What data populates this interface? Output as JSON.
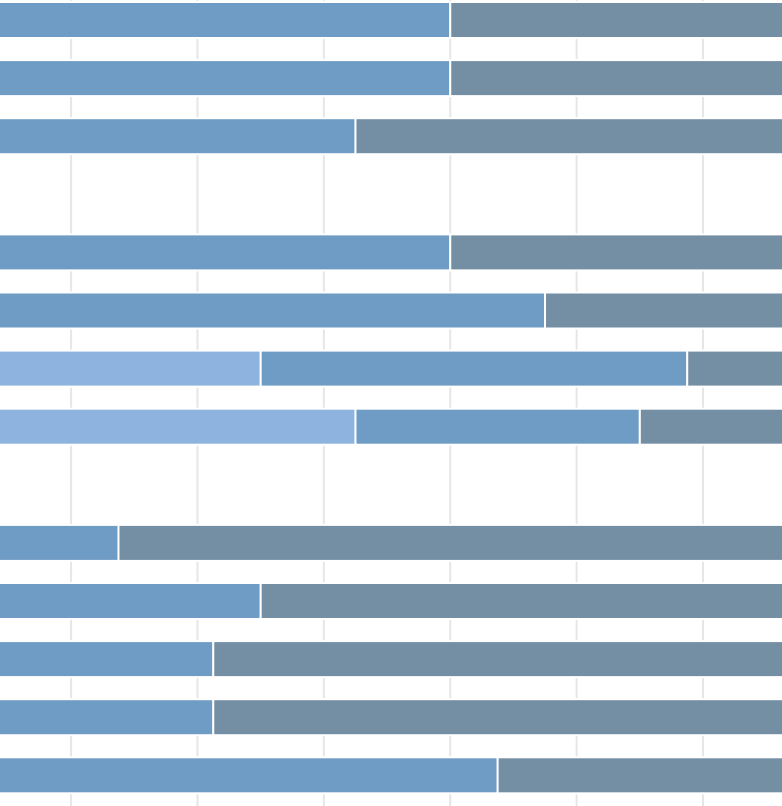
{
  "chart_data": {
    "type": "bar",
    "orientation": "horizontal",
    "stacked": true,
    "grid": true,
    "legend": "none",
    "colors": {
      "light": "#89b1dd",
      "mid": "#6a99c3",
      "dark": "#6f8aa1",
      "gridline": "#e6e6e6",
      "segment_border": "#ffffff"
    },
    "rows": [
      {
        "segments": [
          {
            "color": "mid",
            "value": 48
          },
          {
            "color": "dark",
            "value": 52
          }
        ]
      },
      {
        "segments": [
          {
            "color": "mid",
            "value": 48
          },
          {
            "color": "dark",
            "value": 52
          }
        ]
      },
      {
        "segments": [
          {
            "color": "mid",
            "value": 36
          },
          {
            "color": "dark",
            "value": 64
          }
        ]
      },
      null,
      {
        "segments": [
          {
            "color": "mid",
            "value": 48
          },
          {
            "color": "dark",
            "value": 52
          }
        ]
      },
      {
        "segments": [
          {
            "color": "mid",
            "value": 60
          },
          {
            "color": "dark",
            "value": 40
          }
        ]
      },
      {
        "segments": [
          {
            "color": "light",
            "value": 24
          },
          {
            "color": "mid",
            "value": 54
          },
          {
            "color": "dark",
            "value": 22
          }
        ]
      },
      {
        "segments": [
          {
            "color": "light",
            "value": 36
          },
          {
            "color": "mid",
            "value": 36
          },
          {
            "color": "dark",
            "value": 28
          }
        ]
      },
      null,
      {
        "segments": [
          {
            "color": "mid",
            "value": 6
          },
          {
            "color": "dark",
            "value": 94
          }
        ]
      },
      {
        "segments": [
          {
            "color": "mid",
            "value": 24
          },
          {
            "color": "dark",
            "value": 76
          }
        ]
      },
      {
        "segments": [
          {
            "color": "mid",
            "value": 18
          },
          {
            "color": "dark",
            "value": 82
          }
        ]
      },
      {
        "segments": [
          {
            "color": "mid",
            "value": 18
          },
          {
            "color": "dark",
            "value": 82
          }
        ]
      },
      {
        "segments": [
          {
            "color": "mid",
            "value": 54
          },
          {
            "color": "dark",
            "value": 46
          }
        ]
      }
    ],
    "xlim": [
      -9,
      90
    ],
    "gridlines_x": [
      0,
      16,
      32,
      48,
      64,
      80
    ]
  }
}
